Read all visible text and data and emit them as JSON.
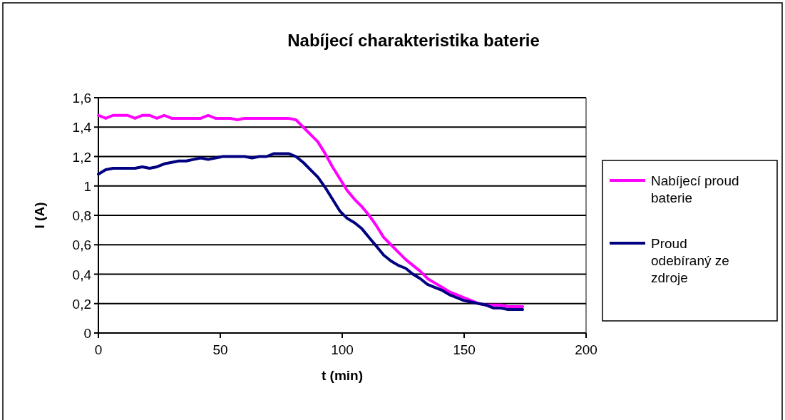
{
  "chart_data": {
    "type": "line",
    "title": "Nabíjecí charakteristika baterie",
    "xlabel": "t (min)",
    "ylabel": "I (A)",
    "x": [
      0,
      3,
      6,
      9,
      12,
      15,
      18,
      21,
      24,
      27,
      30,
      33,
      36,
      39,
      42,
      45,
      48,
      51,
      54,
      57,
      60,
      63,
      66,
      69,
      72,
      75,
      78,
      81,
      84,
      87,
      90,
      93,
      96,
      99,
      102,
      105,
      108,
      111,
      114,
      117,
      120,
      123,
      126,
      129,
      132,
      135,
      138,
      141,
      144,
      147,
      150,
      153,
      156,
      159,
      162,
      165,
      168,
      171,
      174
    ],
    "series": [
      {
        "name": "Nabíjecí proud baterie",
        "color": "#ff00ff",
        "values": [
          1.48,
          1.46,
          1.48,
          1.48,
          1.48,
          1.46,
          1.48,
          1.48,
          1.46,
          1.48,
          1.46,
          1.46,
          1.46,
          1.46,
          1.46,
          1.48,
          1.46,
          1.46,
          1.46,
          1.45,
          1.46,
          1.46,
          1.46,
          1.46,
          1.46,
          1.46,
          1.46,
          1.45,
          1.4,
          1.35,
          1.3,
          1.22,
          1.13,
          1.05,
          0.97,
          0.91,
          0.86,
          0.8,
          0.73,
          0.65,
          0.6,
          0.55,
          0.5,
          0.46,
          0.42,
          0.37,
          0.34,
          0.31,
          0.28,
          0.26,
          0.24,
          0.22,
          0.2,
          0.19,
          0.19,
          0.19,
          0.18,
          0.18,
          0.18
        ]
      },
      {
        "name": "Proud odebíraný ze zdroje",
        "color": "#000080",
        "values": [
          1.08,
          1.11,
          1.12,
          1.12,
          1.12,
          1.12,
          1.13,
          1.12,
          1.13,
          1.15,
          1.16,
          1.17,
          1.17,
          1.18,
          1.19,
          1.18,
          1.19,
          1.2,
          1.2,
          1.2,
          1.2,
          1.19,
          1.2,
          1.2,
          1.22,
          1.22,
          1.22,
          1.2,
          1.16,
          1.11,
          1.06,
          0.99,
          0.91,
          0.83,
          0.78,
          0.75,
          0.71,
          0.65,
          0.59,
          0.53,
          0.49,
          0.46,
          0.44,
          0.4,
          0.37,
          0.33,
          0.31,
          0.29,
          0.26,
          0.24,
          0.22,
          0.21,
          0.2,
          0.19,
          0.17,
          0.17,
          0.16,
          0.16,
          0.16
        ]
      }
    ],
    "xlim": [
      0,
      200
    ],
    "xticks": [
      0,
      50,
      100,
      150,
      200
    ],
    "ylim": [
      0,
      1.6
    ],
    "yticks": [
      0,
      {
        "value": 0.2,
        "label": "0,2"
      },
      {
        "value": 0.4,
        "label": "0,4"
      },
      {
        "value": 0.6,
        "label": "0,6"
      },
      {
        "value": 0.8,
        "label": "0,8"
      },
      1,
      {
        "value": 1.2,
        "label": "1,2"
      },
      {
        "value": 1.4,
        "label": "1,4"
      },
      {
        "value": 1.6,
        "label": "1,6"
      }
    ],
    "grid": "y",
    "legend": "right",
    "marker": "none",
    "line_style": "solid"
  }
}
